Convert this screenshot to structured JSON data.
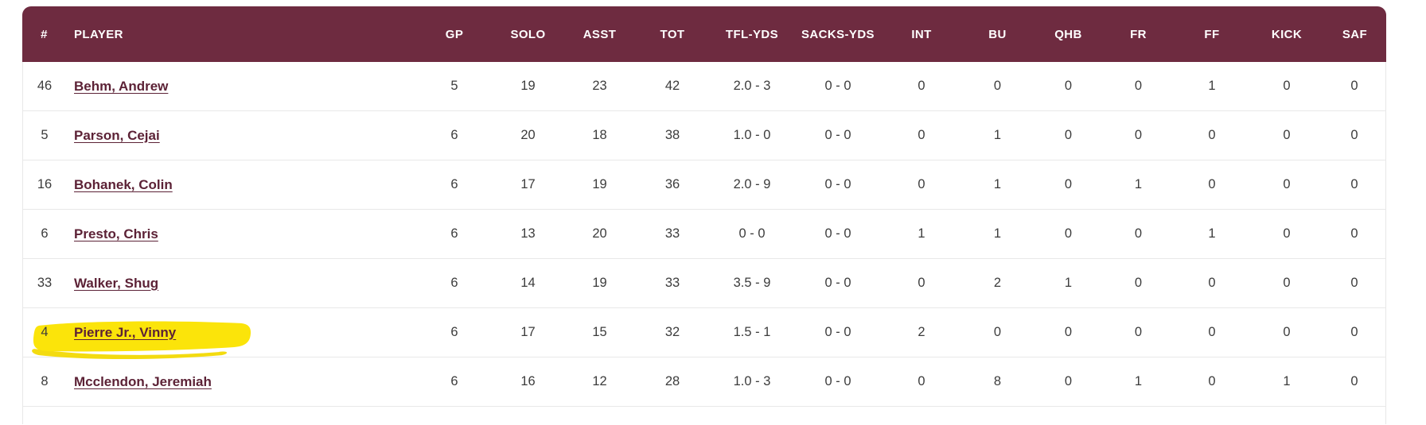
{
  "table": {
    "columns": [
      {
        "key": "number",
        "label": "#"
      },
      {
        "key": "player",
        "label": "PLAYER"
      },
      {
        "key": "gp",
        "label": "GP"
      },
      {
        "key": "solo",
        "label": "SOLO"
      },
      {
        "key": "asst",
        "label": "ASST"
      },
      {
        "key": "tot",
        "label": "TOT"
      },
      {
        "key": "tfl-yds",
        "label": "TFL-YDS"
      },
      {
        "key": "sacks-yds",
        "label": "SACKS-YDS"
      },
      {
        "key": "int",
        "label": "INT"
      },
      {
        "key": "bu",
        "label": "BU"
      },
      {
        "key": "qhb",
        "label": "QHB"
      },
      {
        "key": "fr",
        "label": "FR"
      },
      {
        "key": "ff",
        "label": "FF"
      },
      {
        "key": "kick",
        "label": "KICK"
      },
      {
        "key": "saf",
        "label": "SAF"
      }
    ],
    "rows": [
      {
        "number": "46",
        "player": "Behm, Andrew",
        "highlighted": false,
        "stats": [
          "5",
          "19",
          "23",
          "42",
          "2.0 - 3",
          "0 - 0",
          "0",
          "0",
          "0",
          "0",
          "1",
          "0",
          "0"
        ]
      },
      {
        "number": "5",
        "player": "Parson, Cejai",
        "highlighted": false,
        "stats": [
          "6",
          "20",
          "18",
          "38",
          "1.0 - 0",
          "0 - 0",
          "0",
          "1",
          "0",
          "0",
          "0",
          "0",
          "0"
        ]
      },
      {
        "number": "16",
        "player": "Bohanek, Colin",
        "highlighted": false,
        "stats": [
          "6",
          "17",
          "19",
          "36",
          "2.0 - 9",
          "0 - 0",
          "0",
          "1",
          "0",
          "1",
          "0",
          "0",
          "0"
        ]
      },
      {
        "number": "6",
        "player": "Presto, Chris",
        "highlighted": false,
        "stats": [
          "6",
          "13",
          "20",
          "33",
          "0 - 0",
          "0 - 0",
          "1",
          "1",
          "0",
          "0",
          "1",
          "0",
          "0"
        ]
      },
      {
        "number": "33",
        "player": "Walker, Shug",
        "highlighted": false,
        "stats": [
          "6",
          "14",
          "19",
          "33",
          "3.5 - 9",
          "0 - 0",
          "0",
          "2",
          "1",
          "0",
          "0",
          "0",
          "0"
        ]
      },
      {
        "number": "4",
        "player": "Pierre Jr., Vinny",
        "highlighted": true,
        "stats": [
          "6",
          "17",
          "15",
          "32",
          "1.5 - 1",
          "0 - 0",
          "2",
          "0",
          "0",
          "0",
          "0",
          "0",
          "0"
        ]
      },
      {
        "number": "8",
        "player": "Mcclendon, Jeremiah",
        "highlighted": false,
        "stats": [
          "6",
          "16",
          "12",
          "28",
          "1.0 - 3",
          "0 - 0",
          "0",
          "8",
          "0",
          "1",
          "0",
          "1",
          "0"
        ]
      }
    ]
  },
  "colors": {
    "header_bg": "#6e2b40",
    "link": "#5c2236",
    "row_text": "#3c3c3c",
    "divider": "#e8e8e8",
    "highlight": "#fbe40a",
    "highlight_edge": "#f2d903"
  }
}
